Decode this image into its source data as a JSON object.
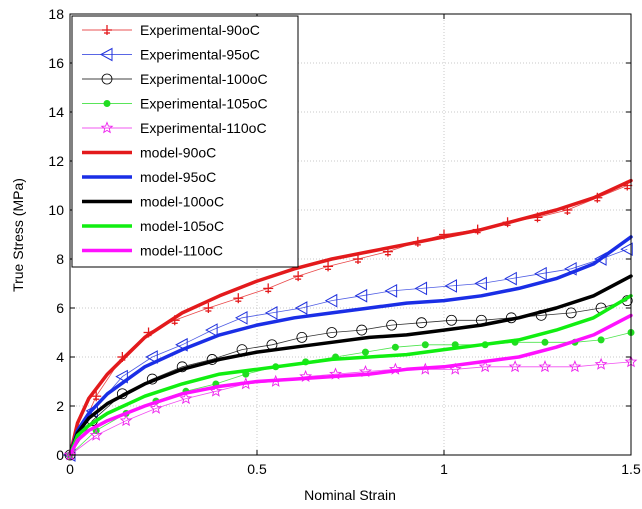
{
  "chart_data": {
    "type": "line",
    "title": "",
    "xlabel": "Nominal Strain",
    "ylabel": "True Stress (MPa)",
    "xlim": [
      0,
      1.5
    ],
    "ylim": [
      0,
      18
    ],
    "x_ticks": [
      0,
      0.5,
      1,
      1.5
    ],
    "x_tick_labels": [
      "0",
      "0.5",
      "1",
      "1.5"
    ],
    "y_ticks": [
      0,
      2,
      4,
      6,
      8,
      10,
      12,
      14,
      16,
      18
    ],
    "y_tick_labels": [
      "0",
      "2",
      "4",
      "6",
      "8",
      "10",
      "12",
      "14",
      "16",
      "18"
    ],
    "grid": true,
    "legend_position": "top-left",
    "series": [
      {
        "name": "Experimental-90oC",
        "kind": "experimental",
        "marker": "cross",
        "color": "#e31a1c",
        "x": [
          0,
          0.07,
          0.14,
          0.21,
          0.28,
          0.37,
          0.45,
          0.53,
          0.61,
          0.69,
          0.77,
          0.85,
          0.93,
          1.0,
          1.09,
          1.17,
          1.25,
          1.33,
          1.41,
          1.49
        ],
        "y": [
          0,
          2.4,
          4.0,
          5.0,
          5.5,
          6.0,
          6.4,
          6.8,
          7.3,
          7.7,
          8.0,
          8.3,
          8.7,
          9.0,
          9.2,
          9.5,
          9.7,
          10.0,
          10.5,
          11.0
        ]
      },
      {
        "name": "Experimental-95oC",
        "kind": "experimental",
        "marker": "triangle-left",
        "color": "#2233dd",
        "x": [
          0,
          0.06,
          0.14,
          0.22,
          0.3,
          0.38,
          0.46,
          0.54,
          0.62,
          0.7,
          0.78,
          0.86,
          0.94,
          1.02,
          1.1,
          1.18,
          1.26,
          1.34,
          1.42,
          1.49
        ],
        "y": [
          0,
          1.8,
          3.2,
          4.0,
          4.5,
          5.1,
          5.6,
          5.8,
          6.0,
          6.3,
          6.5,
          6.7,
          6.8,
          6.9,
          7.0,
          7.2,
          7.4,
          7.6,
          8.0,
          8.4
        ]
      },
      {
        "name": "Experimental-100oC",
        "kind": "experimental",
        "marker": "circle",
        "color": "#000000",
        "x": [
          0,
          0.06,
          0.14,
          0.22,
          0.3,
          0.38,
          0.46,
          0.54,
          0.62,
          0.7,
          0.78,
          0.86,
          0.94,
          1.02,
          1.1,
          1.18,
          1.26,
          1.34,
          1.42,
          1.49
        ],
        "y": [
          0,
          1.4,
          2.5,
          3.1,
          3.6,
          3.9,
          4.3,
          4.5,
          4.8,
          5.0,
          5.1,
          5.3,
          5.4,
          5.5,
          5.5,
          5.6,
          5.7,
          5.8,
          6.0,
          6.3
        ]
      },
      {
        "name": "Experimental-105oC",
        "kind": "experimental",
        "marker": "dot",
        "color": "#22dd22",
        "x": [
          0,
          0.07,
          0.15,
          0.23,
          0.31,
          0.39,
          0.47,
          0.55,
          0.63,
          0.71,
          0.79,
          0.87,
          0.95,
          1.03,
          1.11,
          1.19,
          1.27,
          1.35,
          1.42,
          1.5
        ],
        "y": [
          0,
          1.0,
          1.7,
          2.2,
          2.6,
          2.9,
          3.3,
          3.6,
          3.8,
          4.0,
          4.2,
          4.4,
          4.5,
          4.5,
          4.5,
          4.6,
          4.6,
          4.6,
          4.7,
          5.0
        ]
      },
      {
        "name": "Experimental-110oC",
        "kind": "experimental",
        "marker": "star",
        "color": "#ee22ee",
        "x": [
          0,
          0.07,
          0.15,
          0.23,
          0.31,
          0.39,
          0.47,
          0.55,
          0.63,
          0.71,
          0.79,
          0.87,
          0.95,
          1.03,
          1.11,
          1.19,
          1.27,
          1.35,
          1.42,
          1.5
        ],
        "y": [
          0,
          0.8,
          1.4,
          1.9,
          2.3,
          2.6,
          2.9,
          3.0,
          3.2,
          3.3,
          3.4,
          3.5,
          3.5,
          3.5,
          3.6,
          3.6,
          3.6,
          3.6,
          3.7,
          3.8
        ]
      },
      {
        "name": "model-90oC",
        "kind": "model",
        "marker": "none",
        "color": "#e31a1c",
        "x": [
          0,
          0.02,
          0.05,
          0.1,
          0.2,
          0.3,
          0.4,
          0.5,
          0.6,
          0.7,
          0.8,
          0.9,
          1.0,
          1.1,
          1.2,
          1.3,
          1.4,
          1.5
        ],
        "y": [
          0,
          1.3,
          2.3,
          3.3,
          4.8,
          5.8,
          6.5,
          7.1,
          7.6,
          8.0,
          8.3,
          8.6,
          8.9,
          9.2,
          9.6,
          10.0,
          10.5,
          11.2
        ]
      },
      {
        "name": "model-95oC",
        "kind": "model",
        "marker": "none",
        "color": "#1a2ee6",
        "x": [
          0,
          0.02,
          0.05,
          0.1,
          0.2,
          0.3,
          0.4,
          0.5,
          0.6,
          0.7,
          0.8,
          0.9,
          1.0,
          1.1,
          1.2,
          1.3,
          1.4,
          1.5
        ],
        "y": [
          0,
          1.0,
          1.7,
          2.5,
          3.6,
          4.3,
          4.9,
          5.3,
          5.6,
          5.8,
          6.0,
          6.2,
          6.3,
          6.5,
          6.8,
          7.2,
          7.8,
          8.9
        ]
      },
      {
        "name": "model-100oC",
        "kind": "model",
        "marker": "none",
        "color": "#000000",
        "x": [
          0,
          0.02,
          0.05,
          0.1,
          0.2,
          0.3,
          0.4,
          0.5,
          0.6,
          0.7,
          0.8,
          0.9,
          1.0,
          1.1,
          1.2,
          1.3,
          1.4,
          1.5
        ],
        "y": [
          0,
          0.9,
          1.5,
          2.1,
          2.9,
          3.5,
          3.9,
          4.2,
          4.4,
          4.6,
          4.8,
          4.9,
          5.1,
          5.3,
          5.6,
          6.0,
          6.5,
          7.3
        ]
      },
      {
        "name": "model-105oC",
        "kind": "model",
        "marker": "none",
        "color": "#11ee11",
        "x": [
          0,
          0.02,
          0.05,
          0.1,
          0.2,
          0.3,
          0.4,
          0.5,
          0.6,
          0.7,
          0.8,
          0.9,
          1.0,
          1.1,
          1.2,
          1.3,
          1.4,
          1.5
        ],
        "y": [
          0,
          0.8,
          1.2,
          1.7,
          2.4,
          2.9,
          3.3,
          3.5,
          3.7,
          3.9,
          4.0,
          4.1,
          4.3,
          4.5,
          4.7,
          5.1,
          5.6,
          6.5
        ]
      },
      {
        "name": "model-110oC",
        "kind": "model",
        "marker": "none",
        "color": "#ff11ff",
        "x": [
          0,
          0.02,
          0.05,
          0.1,
          0.2,
          0.3,
          0.4,
          0.5,
          0.6,
          0.7,
          0.8,
          0.9,
          1.0,
          1.1,
          1.2,
          1.3,
          1.4,
          1.5
        ],
        "y": [
          0,
          0.6,
          1.0,
          1.4,
          2.0,
          2.5,
          2.8,
          3.0,
          3.1,
          3.2,
          3.3,
          3.5,
          3.6,
          3.8,
          4.0,
          4.4,
          4.9,
          5.7
        ]
      }
    ]
  }
}
